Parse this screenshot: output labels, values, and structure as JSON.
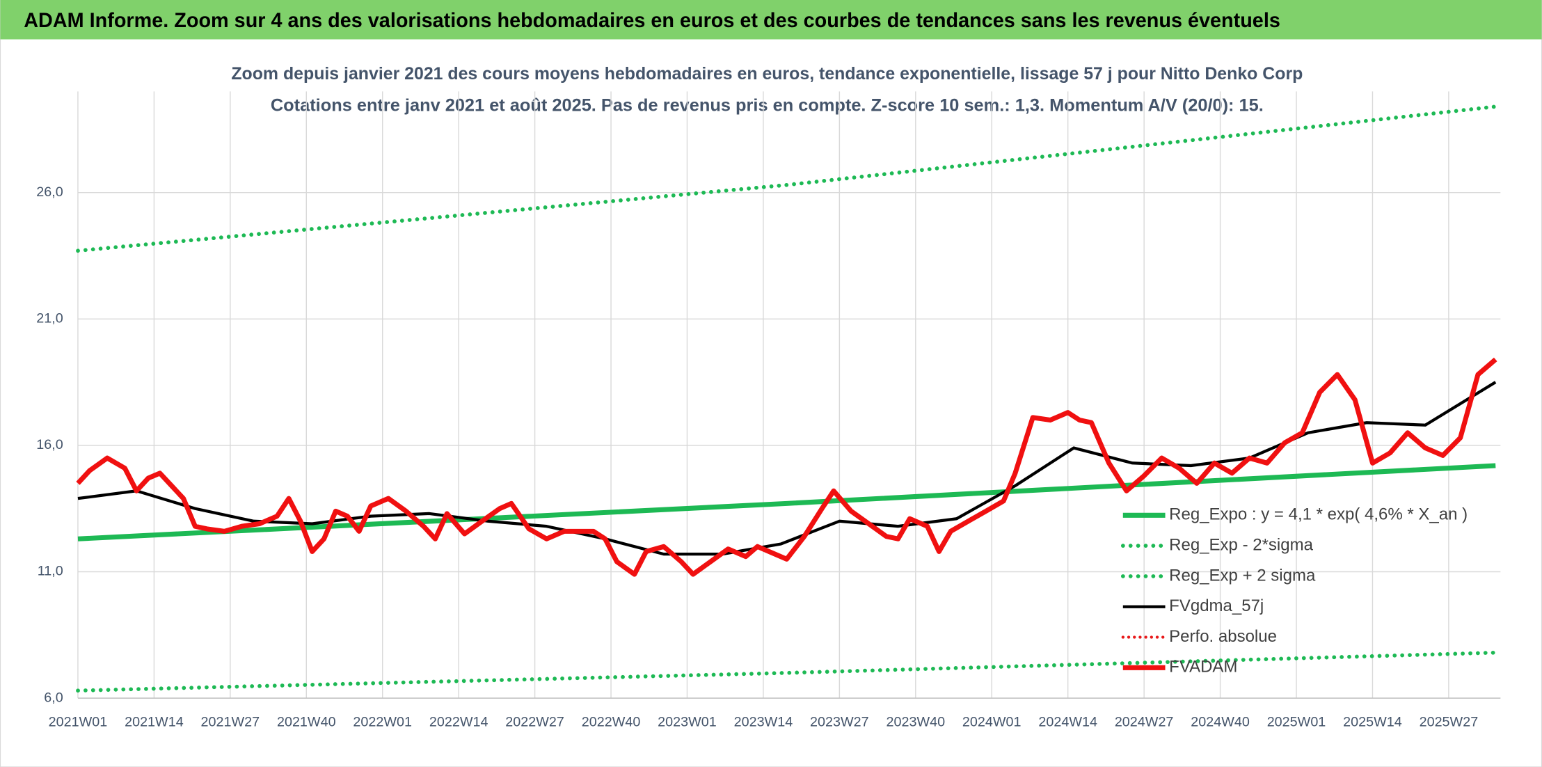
{
  "chart_data": {
    "type": "line",
    "header": "ADAM Informe. Zoom sur 4 ans des valorisations hebdomadaires en euros et des courbes de tendances sans les revenus éventuels",
    "title": "Zoom depuis janvier 2021 des cours moyens hebdomadaires en euros, tendance exponentielle, lissage 57 j pour Nitto Denko Corp",
    "subtitle": "Cotations entre janv 2021 et août 2025. Pas de revenus pris en compte. Z-score 10 sem.: 1,3. Momentum A/V (20/0): 15.",
    "xlim": [
      0,
      242
    ],
    "xticks": [
      {
        "value": 0,
        "label": "2021W01"
      },
      {
        "value": 13,
        "label": "2021W14"
      },
      {
        "value": 26,
        "label": "2021W27"
      },
      {
        "value": 39,
        "label": "2021W40"
      },
      {
        "value": 52,
        "label": "2022W01"
      },
      {
        "value": 65,
        "label": "2022W14"
      },
      {
        "value": 78,
        "label": "2022W27"
      },
      {
        "value": 91,
        "label": "2022W40"
      },
      {
        "value": 104,
        "label": "2023W01"
      },
      {
        "value": 117,
        "label": "2023W14"
      },
      {
        "value": 130,
        "label": "2023W27"
      },
      {
        "value": 143,
        "label": "2023W40"
      },
      {
        "value": 156,
        "label": "2024W01"
      },
      {
        "value": 169,
        "label": "2024W14"
      },
      {
        "value": 182,
        "label": "2024W27"
      },
      {
        "value": 195,
        "label": "2024W40"
      },
      {
        "value": 208,
        "label": "2025W01"
      },
      {
        "value": 221,
        "label": "2025W14"
      },
      {
        "value": 234,
        "label": "2025W27"
      }
    ],
    "ylim": [
      6,
      30
    ],
    "yticks": [
      {
        "value": 6,
        "label": "6,0"
      },
      {
        "value": 11,
        "label": "11,0"
      },
      {
        "value": 16,
        "label": "16,0"
      },
      {
        "value": 21,
        "label": "21,0"
      },
      {
        "value": 26,
        "label": "26,0"
      }
    ],
    "grid": true,
    "series": [
      {
        "name": "Reg_Expo : y = 4,1 * exp( 4,6% *  X_an )",
        "color": "#1db954",
        "style": "solid",
        "width": 5,
        "x": [
          0,
          121,
          242
        ],
        "values": [
          12.3,
          13.7,
          15.2
        ]
      },
      {
        "name": "Reg_Exp - 2*sigma",
        "color": "#1db954",
        "style": "dotted",
        "width": 4,
        "x": [
          0,
          121,
          242
        ],
        "values": [
          6.3,
          7.0,
          7.8
        ]
      },
      {
        "name": "Reg_Exp + 2 sigma",
        "color": "#1db954",
        "style": "dotted",
        "width": 4,
        "x": [
          0,
          121,
          242
        ],
        "values": [
          23.7,
          26.3,
          29.4
        ]
      },
      {
        "name": "FVgdma_57j",
        "color": "#000000",
        "style": "solid",
        "width": 3,
        "x": [
          0,
          10,
          20,
          30,
          40,
          50,
          60,
          70,
          80,
          90,
          100,
          110,
          120,
          130,
          140,
          150,
          160,
          170,
          180,
          190,
          200,
          210,
          220,
          230,
          242
        ],
        "values": [
          13.9,
          14.2,
          13.5,
          13.0,
          12.9,
          13.2,
          13.3,
          13.0,
          12.8,
          12.3,
          11.7,
          11.7,
          12.1,
          13.0,
          12.8,
          13.1,
          14.4,
          15.9,
          15.3,
          15.2,
          15.5,
          16.5,
          16.9,
          16.8,
          18.5
        ]
      },
      {
        "name": "Perfo. absolue",
        "color": "#e8191a",
        "style": "dotted",
        "width": 3,
        "x": [],
        "values": []
      },
      {
        "name": "FVADAM",
        "color": "#f01010",
        "style": "solid",
        "width": 5,
        "x": [
          0,
          2,
          5,
          8,
          10,
          12,
          14,
          16,
          18,
          20,
          22,
          25,
          28,
          31,
          34,
          36,
          38,
          40,
          42,
          44,
          46,
          48,
          50,
          53,
          56,
          59,
          61,
          63,
          66,
          69,
          72,
          74,
          77,
          80,
          83,
          86,
          88,
          90,
          92,
          95,
          97,
          100,
          103,
          105,
          108,
          111,
          114,
          116,
          118,
          121,
          124,
          127,
          129,
          132,
          135,
          138,
          140,
          142,
          145,
          147,
          149,
          152,
          155,
          158,
          160,
          163,
          166,
          169,
          171,
          173,
          176,
          179,
          182,
          185,
          188,
          191,
          194,
          197,
          200,
          203,
          206,
          209,
          212,
          215,
          218,
          221,
          224,
          227,
          230,
          233,
          236,
          239,
          242
        ],
        "values": [
          14.5,
          15.0,
          15.5,
          15.1,
          14.2,
          14.7,
          14.9,
          14.4,
          13.9,
          12.8,
          12.7,
          12.6,
          12.8,
          12.9,
          13.2,
          13.9,
          13.0,
          11.8,
          12.3,
          13.4,
          13.2,
          12.6,
          13.6,
          13.9,
          13.4,
          12.8,
          12.3,
          13.3,
          12.5,
          13.0,
          13.5,
          13.7,
          12.7,
          12.3,
          12.6,
          12.6,
          12.6,
          12.3,
          11.4,
          10.9,
          11.8,
          12.0,
          11.4,
          10.9,
          11.4,
          11.9,
          11.6,
          12.0,
          11.8,
          11.5,
          12.4,
          13.5,
          14.2,
          13.4,
          12.9,
          12.4,
          12.3,
          13.1,
          12.8,
          11.8,
          12.6,
          13.0,
          13.4,
          13.8,
          14.9,
          17.1,
          17.0,
          17.3,
          17.0,
          16.9,
          15.3,
          14.2,
          14.8,
          15.5,
          15.1,
          14.5,
          15.3,
          14.9,
          15.5,
          15.3,
          16.1,
          16.5,
          18.1,
          18.8,
          17.8,
          15.3,
          15.7,
          16.5,
          15.9,
          15.6,
          16.3,
          18.8,
          19.4
        ]
      }
    ]
  }
}
